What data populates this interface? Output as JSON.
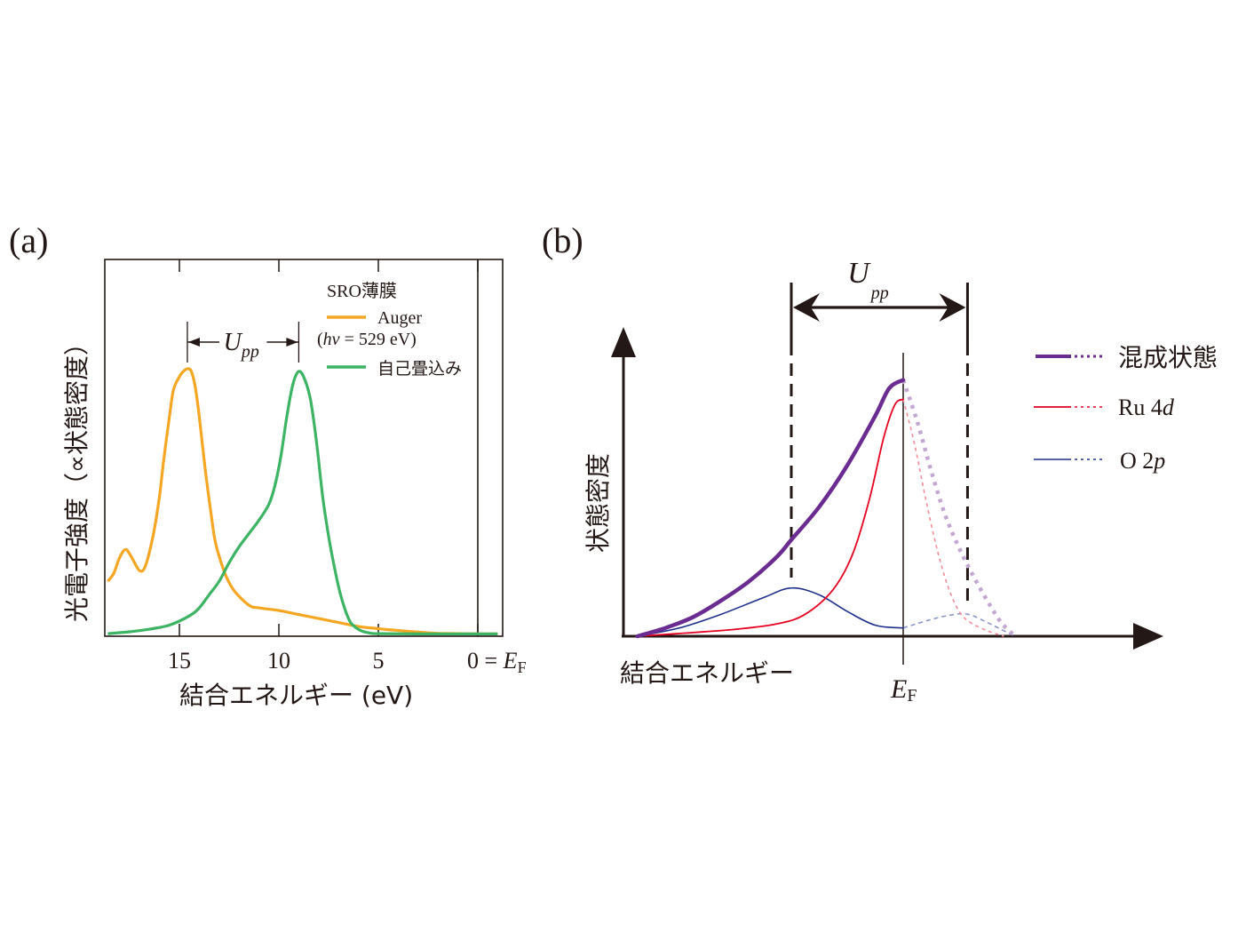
{
  "chart_data": [
    {
      "panel_label": "(a)",
      "type": "line",
      "title": "",
      "xlabel": "結合エネルギー (eV)",
      "ylabel": "光電子強度（∝状態密度）",
      "x_reversed": true,
      "xlim": [
        18.75,
        -1.25
      ],
      "ylim": [
        0,
        1.05
      ],
      "xticks": [
        15,
        10,
        5,
        0
      ],
      "xtick_labels": [
        "15",
        "10",
        "5",
        "0 = "
      ],
      "fermi_label": {
        "main": "E",
        "sub": "F"
      },
      "fermi_line_at": 0,
      "grid": false,
      "legend": {
        "placement": "top-right",
        "title": "SRO薄膜",
        "entries": [
          {
            "label": "Auger",
            "sublabel_prefix": "(",
            "sublabel_italic": "hv",
            "sublabel_rest": " = 529 eV)",
            "color": "#f5a623"
          },
          {
            "label": "自己畳込み",
            "color": "#3cb464"
          }
        ]
      },
      "annotation": {
        "text_main": "U",
        "text_sub": "pp",
        "from_x": 14.6,
        "to_x": 9.0,
        "style": "arrows-inward"
      },
      "series": [
        {
          "name": "Auger",
          "color": "#f5a623",
          "x": [
            18.6,
            18.3,
            18.0,
            17.7,
            17.4,
            17.0,
            16.7,
            16.3,
            16.0,
            15.8,
            15.5,
            15.3,
            15.0,
            14.8,
            14.6,
            14.4,
            14.2,
            14.0,
            13.7,
            13.4,
            13.2,
            12.9,
            12.6,
            12.2,
            11.5,
            11.0,
            10.0,
            9.0,
            8.0,
            7.0,
            6.0,
            5.0,
            4.5,
            3.5,
            2.5,
            2.0,
            1.0,
            0.0,
            -1.0
          ],
          "y": [
            0.2,
            0.23,
            0.29,
            0.32,
            0.29,
            0.24,
            0.26,
            0.38,
            0.52,
            0.65,
            0.82,
            0.92,
            0.97,
            0.99,
            1.0,
            0.99,
            0.93,
            0.82,
            0.62,
            0.45,
            0.35,
            0.27,
            0.21,
            0.16,
            0.11,
            0.1,
            0.09,
            0.075,
            0.06,
            0.045,
            0.03,
            0.022,
            0.018,
            0.012,
            0.006,
            0.004,
            0.003,
            0.002,
            0.002
          ]
        },
        {
          "name": "自己畳込み",
          "color": "#3cb464",
          "x": [
            18.6,
            17.5,
            16.5,
            15.5,
            14.5,
            14.0,
            13.5,
            13.0,
            12.5,
            12.0,
            11.5,
            11.0,
            10.5,
            10.2,
            9.9,
            9.6,
            9.3,
            9.0,
            8.7,
            8.4,
            8.1,
            7.8,
            7.5,
            7.2,
            6.9,
            6.5,
            6.2,
            5.8,
            5.4,
            5.0,
            3.0,
            0.0,
            -1.0
          ],
          "y": [
            0.003,
            0.01,
            0.02,
            0.035,
            0.07,
            0.1,
            0.15,
            0.2,
            0.27,
            0.33,
            0.38,
            0.43,
            0.49,
            0.56,
            0.67,
            0.82,
            0.94,
            0.99,
            0.96,
            0.88,
            0.72,
            0.52,
            0.37,
            0.25,
            0.15,
            0.06,
            0.03,
            0.012,
            0.005,
            0.003,
            0.002,
            0.002,
            0.002
          ]
        }
      ]
    },
    {
      "panel_label": "(b)",
      "type": "line",
      "title": "",
      "xlabel": "結合エネルギー",
      "ylabel": "状態密度",
      "x_reversed": true,
      "xlim": [
        1.0,
        -0.5
      ],
      "ylim": [
        0,
        1.0
      ],
      "fermi_label": {
        "main": "E",
        "sub": "F"
      },
      "fermi_line_at": 0,
      "grid": false,
      "axes_style": "arrows",
      "annotation": {
        "text_main": "U",
        "text_sub": "pp",
        "from_x": 0.4,
        "to_x": -0.23,
        "style": "double-arrow-with-dashed-guides"
      },
      "legend": {
        "placement": "right",
        "entries": [
          {
            "label": "混成状態",
            "color": "#6a2c91",
            "faded_color": "#c3a7d2"
          },
          {
            "label_main": "Ru 4",
            "label_italic": "d",
            "color": "#e60020",
            "faded_color": "#f58c99"
          },
          {
            "label_main": "O 2",
            "label_italic": "p",
            "color": "#1d2f8c",
            "faded_color": "#8b95c9"
          }
        ]
      },
      "series": [
        {
          "name": "混成状態",
          "color": "#6a2c91",
          "occupied_x": [
            0.95,
            0.85,
            0.75,
            0.65,
            0.55,
            0.45,
            0.4,
            0.3,
            0.2,
            0.1,
            0.05,
            0.0
          ],
          "occupied_y": [
            0.0,
            0.03,
            0.07,
            0.13,
            0.2,
            0.29,
            0.35,
            0.47,
            0.62,
            0.8,
            0.9,
            0.93
          ],
          "unoccupied_x": [
            0.0,
            -0.05,
            -0.1,
            -0.15,
            -0.2,
            -0.25,
            -0.3,
            -0.35,
            -0.4
          ],
          "unoccupied_y": [
            0.93,
            0.78,
            0.6,
            0.44,
            0.32,
            0.22,
            0.13,
            0.05,
            0.0
          ]
        },
        {
          "name": "Ru 4d",
          "color": "#e60020",
          "occupied_x": [
            0.95,
            0.8,
            0.6,
            0.45,
            0.35,
            0.25,
            0.18,
            0.12,
            0.07,
            0.03,
            0.0
          ],
          "occupied_y": [
            0.0,
            0.01,
            0.025,
            0.045,
            0.08,
            0.17,
            0.3,
            0.5,
            0.72,
            0.84,
            0.86
          ],
          "unoccupied_x": [
            0.0,
            -0.04,
            -0.08,
            -0.12,
            -0.16,
            -0.2,
            -0.24,
            -0.3,
            -0.36
          ],
          "unoccupied_y": [
            0.86,
            0.7,
            0.5,
            0.32,
            0.18,
            0.09,
            0.05,
            0.02,
            0.0
          ]
        },
        {
          "name": "O 2p",
          "color": "#1d2f8c",
          "occupied_x": [
            0.95,
            0.8,
            0.65,
            0.5,
            0.4,
            0.3,
            0.2,
            0.1,
            0.0
          ],
          "occupied_y": [
            0.0,
            0.03,
            0.08,
            0.14,
            0.175,
            0.15,
            0.09,
            0.04,
            0.03
          ],
          "unoccupied_x": [
            0.0,
            -0.08,
            -0.16,
            -0.23,
            -0.3,
            -0.36,
            -0.4
          ],
          "unoccupied_y": [
            0.03,
            0.055,
            0.075,
            0.08,
            0.05,
            0.02,
            0.0
          ]
        }
      ]
    }
  ]
}
